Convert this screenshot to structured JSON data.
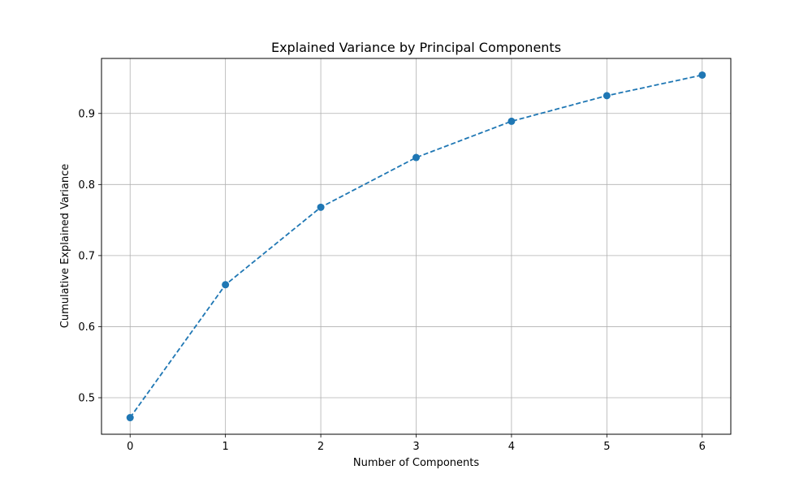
{
  "chart_data": {
    "type": "line",
    "title": "Explained Variance by Principal Components",
    "xlabel": "Number of Components",
    "ylabel": "Cumulative Explained Variance",
    "x": [
      0,
      1,
      2,
      3,
      4,
      5,
      6
    ],
    "series": [
      {
        "values": [
          0.472,
          0.659,
          0.768,
          0.838,
          0.889,
          0.925,
          0.954
        ],
        "color": "#1f77b4",
        "line_style": "dashed",
        "marker": "circle"
      }
    ],
    "xlim": [
      -0.3,
      6.3
    ],
    "ylim": [
      0.4486,
      0.9774
    ],
    "xticks": [
      0,
      1,
      2,
      3,
      4,
      5,
      6
    ],
    "yticks": [
      0.5,
      0.6,
      0.7,
      0.8,
      0.9
    ],
    "grid": true,
    "legend": false
  }
}
